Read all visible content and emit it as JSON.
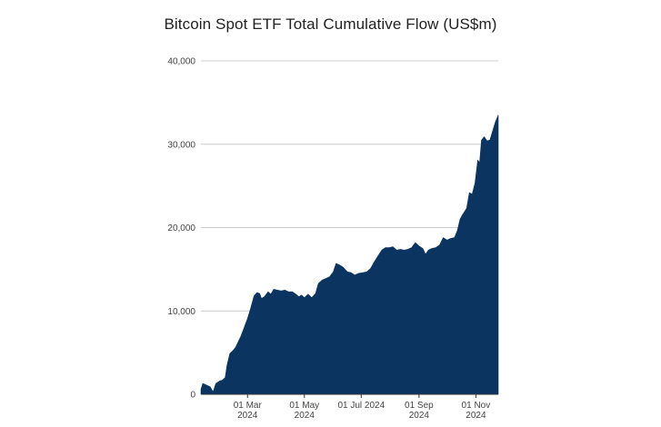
{
  "chart_data": {
    "type": "area",
    "title": "Bitcoin Spot ETF Total Cumulative Flow (US$m)",
    "xlabel": "",
    "ylabel": "",
    "ylim": [
      0,
      40000
    ],
    "grid": true,
    "legend": "none",
    "color": "#0b3460",
    "y_ticks": [
      {
        "value": 0,
        "label": "0"
      },
      {
        "value": 10000,
        "label": "10,000"
      },
      {
        "value": 20000,
        "label": "20,000"
      },
      {
        "value": 30000,
        "label": "30,000"
      },
      {
        "value": 40000,
        "label": "40,000"
      }
    ],
    "x_range": [
      "2024-01-11",
      "2024-11-25"
    ],
    "x_ticks": [
      {
        "date": "2024-03-01",
        "line1": "01 Mar",
        "line2": "2024"
      },
      {
        "date": "2024-05-01",
        "line1": "01 May",
        "line2": "2024"
      },
      {
        "date": "2024-07-01",
        "line1": "01 Jul 2024",
        "line2": ""
      },
      {
        "date": "2024-09-01",
        "line1": "01 Sep",
        "line2": "2024"
      },
      {
        "date": "2024-11-01",
        "line1": "01 Nov",
        "line2": "2024"
      }
    ],
    "series": [
      {
        "points": [
          [
            "2024-01-11",
            600
          ],
          [
            "2024-01-13",
            1300
          ],
          [
            "2024-01-17",
            1100
          ],
          [
            "2024-01-21",
            900
          ],
          [
            "2024-01-24",
            300
          ],
          [
            "2024-01-27",
            1300
          ],
          [
            "2024-01-31",
            1600
          ],
          [
            "2024-02-03",
            1700
          ],
          [
            "2024-02-06",
            2000
          ],
          [
            "2024-02-08",
            3500
          ],
          [
            "2024-02-11",
            4900
          ],
          [
            "2024-02-14",
            5200
          ],
          [
            "2024-02-17",
            5600
          ],
          [
            "2024-02-20",
            6300
          ],
          [
            "2024-02-23",
            7000
          ],
          [
            "2024-02-27",
            8200
          ],
          [
            "2024-03-01",
            9100
          ],
          [
            "2024-03-04",
            10200
          ],
          [
            "2024-03-08",
            11800
          ],
          [
            "2024-03-11",
            12200
          ],
          [
            "2024-03-14",
            12100
          ],
          [
            "2024-03-16",
            11500
          ],
          [
            "2024-03-19",
            11700
          ],
          [
            "2024-03-23",
            12300
          ],
          [
            "2024-03-26",
            12000
          ],
          [
            "2024-03-29",
            12600
          ],
          [
            "2024-04-02",
            12500
          ],
          [
            "2024-04-06",
            12400
          ],
          [
            "2024-04-10",
            12500
          ],
          [
            "2024-04-14",
            12300
          ],
          [
            "2024-04-18",
            12300
          ],
          [
            "2024-04-22",
            12000
          ],
          [
            "2024-04-25",
            11700
          ],
          [
            "2024-04-28",
            11900
          ],
          [
            "2024-05-01",
            11600
          ],
          [
            "2024-05-05",
            12000
          ],
          [
            "2024-05-09",
            11600
          ],
          [
            "2024-05-13",
            12100
          ],
          [
            "2024-05-16",
            13300
          ],
          [
            "2024-05-20",
            13700
          ],
          [
            "2024-05-24",
            13900
          ],
          [
            "2024-05-28",
            14100
          ],
          [
            "2024-06-01",
            14700
          ],
          [
            "2024-06-04",
            15700
          ],
          [
            "2024-06-08",
            15500
          ],
          [
            "2024-06-12",
            15200
          ],
          [
            "2024-06-16",
            14700
          ],
          [
            "2024-06-20",
            14600
          ],
          [
            "2024-06-24",
            14300
          ],
          [
            "2024-06-28",
            14500
          ],
          [
            "2024-07-03",
            14600
          ],
          [
            "2024-07-07",
            14700
          ],
          [
            "2024-07-11",
            15100
          ],
          [
            "2024-07-15",
            15900
          ],
          [
            "2024-07-19",
            16600
          ],
          [
            "2024-07-23",
            17300
          ],
          [
            "2024-07-27",
            17600
          ],
          [
            "2024-07-31",
            17600
          ],
          [
            "2024-08-04",
            17700
          ],
          [
            "2024-08-08",
            17300
          ],
          [
            "2024-08-12",
            17400
          ],
          [
            "2024-08-16",
            17300
          ],
          [
            "2024-08-20",
            17400
          ],
          [
            "2024-08-24",
            17600
          ],
          [
            "2024-08-28",
            18200
          ],
          [
            "2024-09-01",
            17800
          ],
          [
            "2024-09-05",
            17500
          ],
          [
            "2024-09-08",
            16800
          ],
          [
            "2024-09-11",
            17300
          ],
          [
            "2024-09-15",
            17500
          ],
          [
            "2024-09-19",
            17600
          ],
          [
            "2024-09-23",
            17900
          ],
          [
            "2024-09-27",
            18800
          ],
          [
            "2024-10-01",
            18500
          ],
          [
            "2024-10-05",
            18700
          ],
          [
            "2024-10-09",
            18800
          ],
          [
            "2024-10-12",
            19600
          ],
          [
            "2024-10-15",
            21000
          ],
          [
            "2024-10-18",
            21600
          ],
          [
            "2024-10-22",
            22300
          ],
          [
            "2024-10-25",
            24200
          ],
          [
            "2024-10-28",
            24000
          ],
          [
            "2024-10-31",
            25300
          ],
          [
            "2024-11-03",
            28100
          ],
          [
            "2024-11-05",
            27800
          ],
          [
            "2024-11-07",
            30500
          ],
          [
            "2024-11-10",
            30900
          ],
          [
            "2024-11-13",
            30400
          ],
          [
            "2024-11-16",
            30500
          ],
          [
            "2024-11-19",
            31600
          ],
          [
            "2024-11-22",
            32700
          ],
          [
            "2024-11-25",
            33500
          ]
        ]
      }
    ]
  }
}
